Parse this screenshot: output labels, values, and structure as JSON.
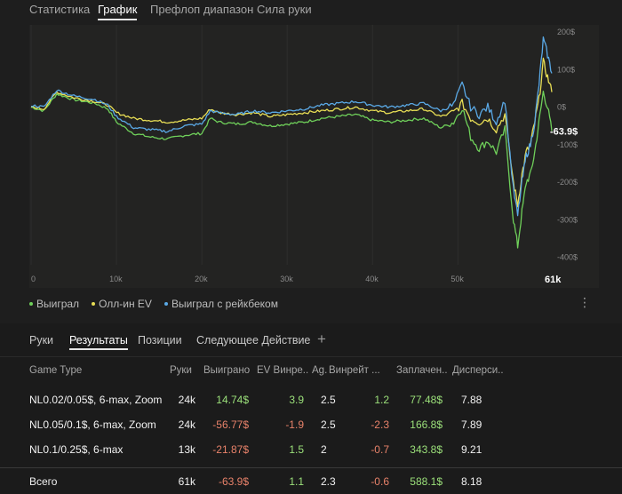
{
  "top_tabs": [
    {
      "label": "Статистика",
      "active": false
    },
    {
      "label": "График",
      "active": true
    },
    {
      "label": "Префлоп диапазон",
      "active": false
    },
    {
      "label": "Сила руки",
      "active": false
    }
  ],
  "chart_data": {
    "type": "line",
    "x_ticks": [
      "0",
      "10k",
      "20k",
      "30k",
      "40k",
      "50k"
    ],
    "x_last": "61k",
    "y_ticks": [
      "200$",
      "100$",
      "0$",
      "-100$",
      "-200$",
      "-300$",
      "-400$"
    ],
    "xlim": [
      0,
      61000
    ],
    "ylim": [
      -420,
      200
    ],
    "current_label": "-63.9$",
    "series": [
      {
        "name": "Выиграл",
        "color": "#6fd05a",
        "x": [
          0,
          1500,
          3000,
          5000,
          7500,
          9000,
          10000,
          12000,
          14000,
          16000,
          18000,
          20000,
          21000,
          22000,
          24000,
          26000,
          28000,
          30000,
          32000,
          34000,
          36000,
          38000,
          40000,
          42000,
          44000,
          46000,
          48000,
          49500,
          50500,
          51500,
          52500,
          53500,
          54500,
          55500,
          56500,
          57000,
          57500,
          58000,
          58500,
          59000,
          59500,
          60000,
          60500,
          61000
        ],
        "values": [
          0,
          -10,
          35,
          20,
          10,
          -5,
          -40,
          -70,
          -80,
          -85,
          -75,
          -70,
          -30,
          -40,
          -45,
          -40,
          -50,
          -45,
          -40,
          -30,
          -25,
          -20,
          -35,
          -40,
          -35,
          -30,
          -55,
          -40,
          0,
          -80,
          -110,
          -90,
          -120,
          -60,
          -300,
          -370,
          -280,
          -200,
          -180,
          -120,
          -40,
          40,
          0,
          -63.9
        ]
      },
      {
        "name": "Олл-ин EV",
        "color": "#e8de55",
        "x": [
          0,
          1500,
          3000,
          5000,
          7500,
          9000,
          10000,
          12000,
          14000,
          16000,
          18000,
          20000,
          21000,
          22000,
          24000,
          26000,
          28000,
          30000,
          32000,
          34000,
          36000,
          38000,
          40000,
          42000,
          44000,
          46000,
          48000,
          49500,
          50500,
          51500,
          52500,
          53500,
          54500,
          55500,
          56500,
          57000,
          57500,
          58000,
          58500,
          59000,
          59500,
          60000,
          60500,
          61000
        ],
        "values": [
          0,
          -5,
          40,
          25,
          15,
          5,
          -15,
          -30,
          -35,
          -40,
          -35,
          -30,
          -5,
          -15,
          -20,
          -15,
          -25,
          -20,
          -15,
          -10,
          -5,
          0,
          -10,
          -15,
          -10,
          -5,
          -25,
          -15,
          10,
          -30,
          -40,
          -30,
          -60,
          -20,
          -200,
          -260,
          -180,
          -120,
          -100,
          -40,
          20,
          120,
          80,
          40
        ]
      },
      {
        "name": "Выиграл с рейкбеком",
        "color": "#5aa9e6",
        "x": [
          0,
          1500,
          3000,
          5000,
          7500,
          9000,
          10000,
          12000,
          14000,
          16000,
          18000,
          20000,
          21000,
          22000,
          24000,
          26000,
          28000,
          30000,
          32000,
          34000,
          36000,
          38000,
          40000,
          42000,
          44000,
          46000,
          48000,
          49500,
          50500,
          51500,
          52500,
          53500,
          54500,
          55500,
          56500,
          57000,
          57500,
          58000,
          58500,
          59000,
          59500,
          60000,
          60500,
          61000
        ],
        "values": [
          5,
          0,
          45,
          30,
          20,
          5,
          -25,
          -55,
          -60,
          -65,
          -50,
          -45,
          -10,
          -15,
          -20,
          -10,
          -15,
          -10,
          -5,
          5,
          10,
          15,
          5,
          0,
          5,
          10,
          -10,
          5,
          60,
          0,
          -20,
          0,
          -40,
          20,
          -220,
          -290,
          -200,
          -130,
          -100,
          -40,
          60,
          180,
          140,
          90
        ]
      }
    ]
  },
  "legend": [
    {
      "label": "Выиграл",
      "color": "#6fd05a"
    },
    {
      "label": "Олл-ин EV",
      "color": "#e8de55"
    },
    {
      "label": "Выиграл с рейкбеком",
      "color": "#5aa9e6"
    }
  ],
  "bottom_tabs": [
    {
      "label": "Руки",
      "active": false
    },
    {
      "label": "Результаты",
      "active": true
    },
    {
      "label": "Позиции",
      "active": false
    },
    {
      "label": "Следующее Действие",
      "active": false
    }
  ],
  "table": {
    "headers": [
      "Game Type",
      "Руки",
      "Выиграно",
      "EV Винре...",
      "Ag.",
      "Винрейт ...",
      "Заплачен...",
      "Дисперси..."
    ],
    "rows": [
      [
        "NL0.02/0.05$, 6-max, Zoom",
        "24k",
        "14.74$",
        "3.9",
        "2.5",
        "1.2",
        "77.48$",
        "7.88"
      ],
      [
        "NL0.05/0.1$, 6-max, Zoom",
        "24k",
        "-56.77$",
        "-1.9",
        "2.5",
        "-2.3",
        "166.8$",
        "7.89"
      ],
      [
        "NL0.1/0.25$, 6-max",
        "13k",
        "-21.87$",
        "1.5",
        "2",
        "-0.7",
        "343.8$",
        "9.21"
      ]
    ],
    "total": [
      "Всего",
      "61k",
      "-63.9$",
      "1.1",
      "2.3",
      "-0.6",
      "588.1$",
      "8.18"
    ]
  }
}
